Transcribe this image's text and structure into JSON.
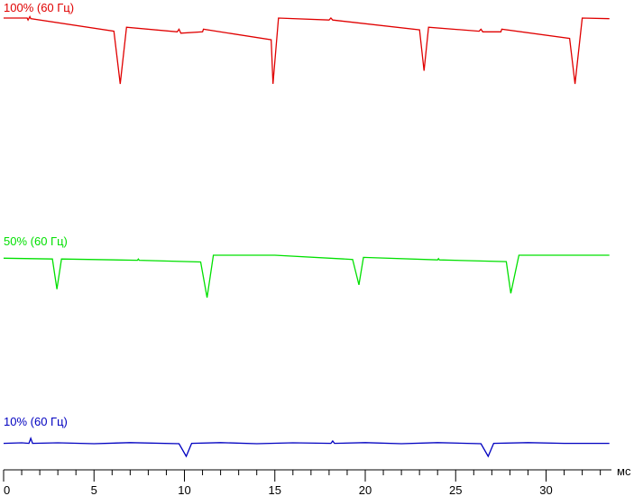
{
  "chart_data": {
    "type": "line",
    "xunit": "мс",
    "xlim": [
      0,
      33.5
    ],
    "xticks_major": [
      0,
      5,
      10,
      15,
      20,
      25,
      30
    ],
    "xticks_major_labels": [
      "0",
      "5",
      "10",
      "15",
      "20",
      "25",
      "30"
    ],
    "xtick_minor_step": 1,
    "grid": false,
    "legend": "none",
    "series": [
      {
        "name": "100% (60 Гц)",
        "color": "#e00000",
        "x": [
          0,
          1.3,
          1.35,
          1.45,
          1.5,
          6.1,
          6.45,
          6.8,
          9.6,
          9.7,
          9.8,
          11.0,
          11.05,
          14.8,
          14.9,
          15.2,
          18.0,
          18.1,
          18.2,
          23.0,
          23.25,
          23.5,
          26.3,
          26.4,
          26.5,
          27.5,
          27.55,
          31.3,
          31.6,
          32.0,
          33.5
        ],
        "y": [
          1.0,
          1.0,
          0.97,
          1.02,
          0.99,
          0.8,
          0.0,
          0.86,
          0.79,
          0.83,
          0.77,
          0.79,
          0.83,
          0.67,
          0.0,
          1.0,
          0.97,
          1.0,
          0.97,
          0.82,
          0.2,
          0.86,
          0.8,
          0.83,
          0.79,
          0.79,
          0.83,
          0.69,
          0.0,
          1.0,
          0.99
        ]
      },
      {
        "name": "50% (60 Гц)",
        "color": "#00e000",
        "x": [
          0,
          2.7,
          2.95,
          3.2,
          7.4,
          7.45,
          7.5,
          10.9,
          11.25,
          11.6,
          15.0,
          19.3,
          19.65,
          19.9,
          24.0,
          24.05,
          24.1,
          27.8,
          28.05,
          28.5,
          33.5
        ],
        "y": [
          0.93,
          0.91,
          0.2,
          0.91,
          0.88,
          0.91,
          0.88,
          0.84,
          0.0,
          1.0,
          1.0,
          0.9,
          0.3,
          0.95,
          0.89,
          0.92,
          0.89,
          0.85,
          0.1,
          1.0,
          1.0
        ]
      },
      {
        "name": "10% (60 Гц)",
        "color": "#0000c0",
        "x": [
          0,
          1.0,
          1.4,
          1.5,
          1.6,
          3.0,
          5.0,
          7.0,
          9.7,
          10.1,
          10.4,
          12.0,
          14.0,
          16.0,
          18.1,
          18.2,
          18.3,
          20.0,
          22.0,
          24.0,
          26.4,
          26.8,
          27.1,
          29.0,
          31.0,
          33.5
        ],
        "y": [
          0.72,
          0.75,
          0.72,
          1.0,
          0.72,
          0.75,
          0.7,
          0.76,
          0.7,
          0.0,
          0.72,
          0.76,
          0.7,
          0.75,
          0.72,
          0.85,
          0.72,
          0.76,
          0.7,
          0.76,
          0.7,
          0.0,
          0.72,
          0.76,
          0.72,
          0.72
        ]
      }
    ]
  }
}
